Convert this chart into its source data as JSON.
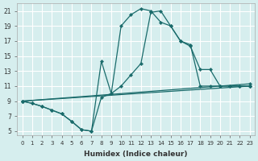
{
  "xlabel": "Humidex (Indice chaleur)",
  "bg_color": "#d6eeee",
  "grid_color": "#ffffff",
  "line_color": "#1a6b6b",
  "xlim": [
    -0.5,
    23.5
  ],
  "ylim": [
    4.5,
    22.0
  ],
  "xticks": [
    0,
    1,
    2,
    3,
    4,
    5,
    6,
    7,
    8,
    9,
    10,
    11,
    12,
    13,
    14,
    15,
    16,
    17,
    18,
    19,
    20,
    21,
    22,
    23
  ],
  "yticks": [
    5,
    7,
    9,
    11,
    13,
    15,
    17,
    19,
    21
  ],
  "lines": [
    {
      "x": [
        0,
        1,
        2,
        3,
        4,
        5,
        6,
        7,
        8,
        9,
        10,
        11,
        12,
        13,
        14,
        15,
        16,
        17,
        18,
        19,
        20,
        21,
        22,
        23
      ],
      "y": [
        9.0,
        8.7,
        8.3,
        7.8,
        7.3,
        6.3,
        5.2,
        5.0,
        14.3,
        10.0,
        19.0,
        20.5,
        21.3,
        21.0,
        19.5,
        19.0,
        17.0,
        16.5,
        11.0,
        11.0,
        11.0,
        11.0,
        11.0,
        11.0
      ]
    },
    {
      "x": [
        0,
        1,
        2,
        3,
        4,
        5,
        6,
        7,
        8,
        9,
        10,
        11,
        12,
        13,
        14,
        15,
        16,
        17,
        18,
        19,
        20,
        21,
        22,
        23
      ],
      "y": [
        9.0,
        8.7,
        8.3,
        7.8,
        7.3,
        6.3,
        5.2,
        5.0,
        9.5,
        10.0,
        11.0,
        12.5,
        14.0,
        20.8,
        21.0,
        19.0,
        17.0,
        16.3,
        13.2,
        13.2,
        11.0,
        11.0,
        11.0,
        11.0
      ]
    },
    {
      "x": [
        0,
        23
      ],
      "y": [
        9.0,
        11.3
      ]
    },
    {
      "x": [
        0,
        23
      ],
      "y": [
        9.0,
        11.0
      ]
    }
  ]
}
